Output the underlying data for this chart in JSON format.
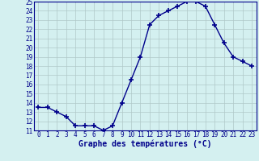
{
  "x": [
    0,
    1,
    2,
    3,
    4,
    5,
    6,
    7,
    8,
    9,
    10,
    11,
    12,
    13,
    14,
    15,
    16,
    17,
    18,
    19,
    20,
    21,
    22,
    23
  ],
  "y": [
    13.5,
    13.5,
    13.0,
    12.5,
    11.5,
    11.5,
    11.5,
    11.0,
    11.5,
    14.0,
    16.5,
    19.0,
    22.5,
    23.5,
    24.0,
    24.5,
    25.0,
    25.0,
    24.5,
    22.5,
    20.5,
    19.0,
    18.5,
    18.0
  ],
  "line_color": "#00008b",
  "marker": "+",
  "marker_size": 4,
  "linewidth": 1.0,
  "xlabel": "Graphe des températures (°C)",
  "xlabel_fontsize": 7,
  "ylim": [
    11,
    25
  ],
  "yticks": [
    11,
    12,
    13,
    14,
    15,
    16,
    17,
    18,
    19,
    20,
    21,
    22,
    23,
    24,
    25
  ],
  "xticks": [
    0,
    1,
    2,
    3,
    4,
    5,
    6,
    7,
    8,
    9,
    10,
    11,
    12,
    13,
    14,
    15,
    16,
    17,
    18,
    19,
    20,
    21,
    22,
    23
  ],
  "tick_fontsize": 5.5,
  "bg_color": "#d4f0f0",
  "grid_color": "#b0c8c8",
  "axes_color": "#00008b",
  "spine_color": "#00008b",
  "xlabel_fontweight": "bold"
}
